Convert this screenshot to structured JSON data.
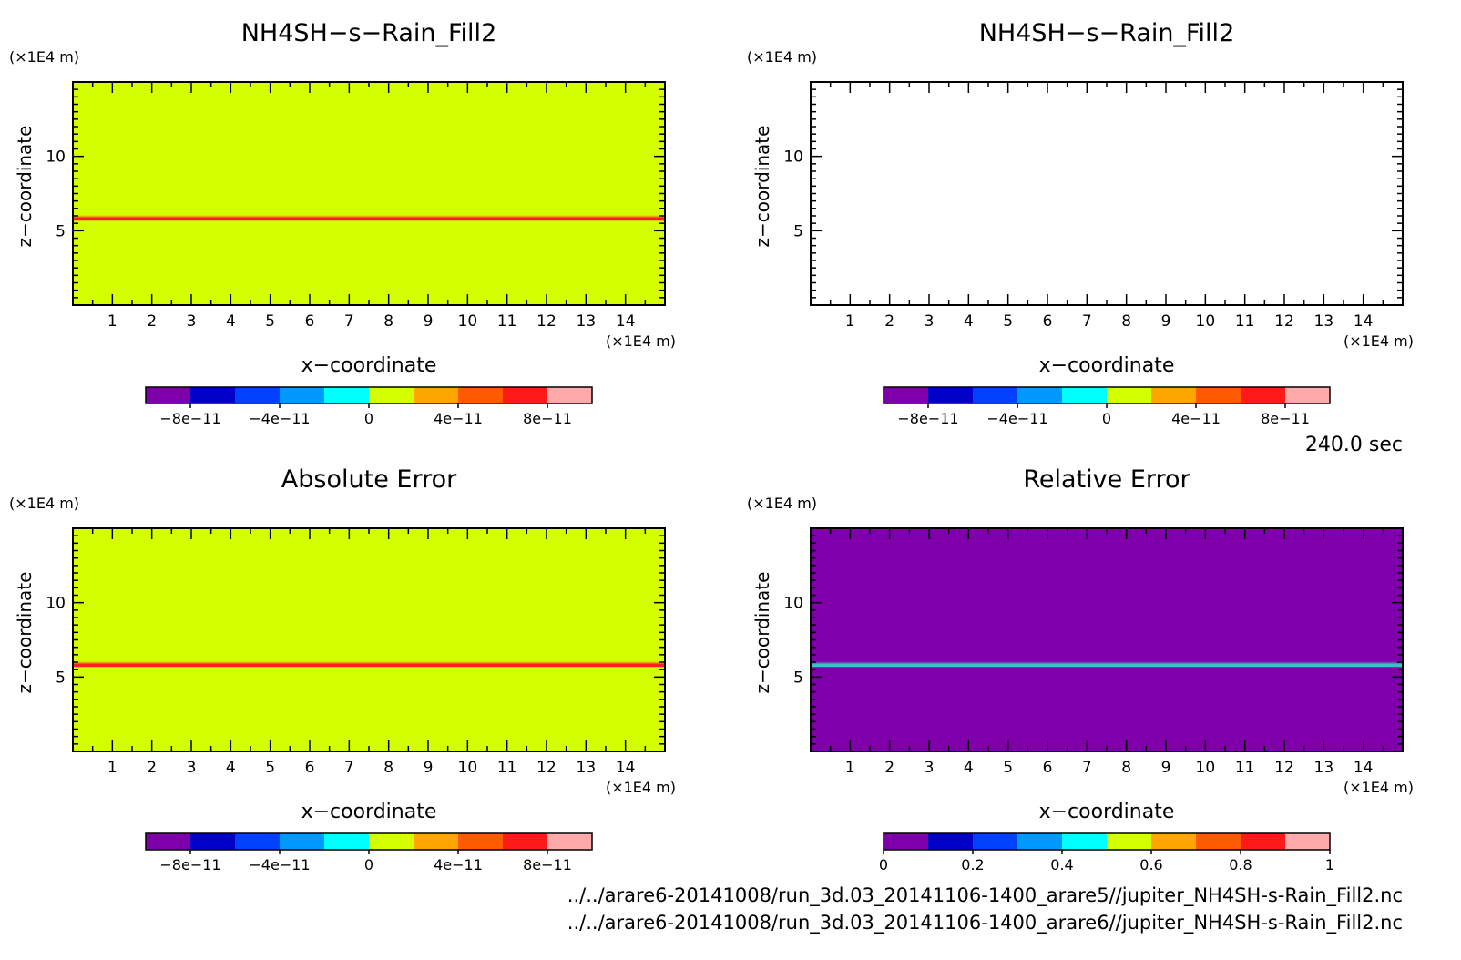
{
  "time_label": "240.0 sec",
  "footer": {
    "file1": "../../arare6-20141008/run_3d.03_20141106-1400_arare5//jupiter_NH4SH-s-Rain_Fill2.nc",
    "file2": "../../arare6-20141008/run_3d.03_20141106-1400_arare6//jupiter_NH4SH-s-Rain_Fill2.nc"
  },
  "colors": {
    "palette": [
      "#7f00aa",
      "#0000c8",
      "#0040ff",
      "#0099ff",
      "#00ffff",
      "#d4ff00",
      "#ffa600",
      "#ff5a00",
      "#ff1a1a",
      "#ffaaaa"
    ],
    "red_line": "#ff2020",
    "cyan_line": "#40c0c0"
  },
  "chart_data": [
    {
      "type": "heatmap",
      "title": "NH4SH−s−Rain_Fill2",
      "xlabel": "x−coordinate",
      "ylabel": "z−coordinate",
      "xunit": "(×1E4 m)",
      "yunit": "(×1E4 m)",
      "xlim": [
        0,
        15
      ],
      "ylim": [
        0,
        15
      ],
      "xticks": [
        "1",
        "2",
        "3",
        "4",
        "5",
        "6",
        "7",
        "8",
        "9",
        "10",
        "11",
        "12",
        "13",
        "14"
      ],
      "yticks": [
        "5",
        "10"
      ],
      "background_color": "#d4ff00",
      "line_features": [
        {
          "z": 5.8,
          "color": "#ff2020"
        }
      ],
      "colorbar": {
        "levels": 10,
        "range": [
          -1e-10,
          1e-10
        ],
        "tick_labels": [
          "−8e−11",
          "−4e−11",
          "0",
          "4e−11",
          "8e−11"
        ],
        "tick_values": [
          -8e-11,
          -4e-11,
          0,
          4e-11,
          8e-11
        ]
      }
    },
    {
      "type": "heatmap",
      "title": "NH4SH−s−Rain_Fill2",
      "xlabel": "x−coordinate",
      "ylabel": "z−coordinate",
      "xunit": "(×1E4 m)",
      "yunit": "(×1E4 m)",
      "xlim": [
        0,
        15
      ],
      "ylim": [
        0,
        15
      ],
      "xticks": [
        "1",
        "2",
        "3",
        "4",
        "5",
        "6",
        "7",
        "8",
        "9",
        "10",
        "11",
        "12",
        "13",
        "14"
      ],
      "yticks": [
        "5",
        "10"
      ],
      "background_color": "#ffffff",
      "line_features": [],
      "colorbar": {
        "levels": 10,
        "range": [
          -1e-10,
          1e-10
        ],
        "tick_labels": [
          "−8e−11",
          "−4e−11",
          "0",
          "4e−11",
          "8e−11"
        ],
        "tick_values": [
          -8e-11,
          -4e-11,
          0,
          4e-11,
          8e-11
        ]
      }
    },
    {
      "type": "heatmap",
      "title": "Absolute Error",
      "xlabel": "x−coordinate",
      "ylabel": "z−coordinate",
      "xunit": "(×1E4 m)",
      "yunit": "(×1E4 m)",
      "xlim": [
        0,
        15
      ],
      "ylim": [
        0,
        15
      ],
      "xticks": [
        "1",
        "2",
        "3",
        "4",
        "5",
        "6",
        "7",
        "8",
        "9",
        "10",
        "11",
        "12",
        "13",
        "14"
      ],
      "yticks": [
        "5",
        "10"
      ],
      "background_color": "#d4ff00",
      "line_features": [
        {
          "z": 5.8,
          "color": "#ff2020"
        }
      ],
      "colorbar": {
        "levels": 10,
        "range": [
          -1e-10,
          1e-10
        ],
        "tick_labels": [
          "−8e−11",
          "−4e−11",
          "0",
          "4e−11",
          "8e−11"
        ],
        "tick_values": [
          -8e-11,
          -4e-11,
          0,
          4e-11,
          8e-11
        ]
      }
    },
    {
      "type": "heatmap",
      "title": "Relative Error",
      "xlabel": "x−coordinate",
      "ylabel": "z−coordinate",
      "xunit": "(×1E4 m)",
      "yunit": "(×1E4 m)",
      "xlim": [
        0,
        15
      ],
      "ylim": [
        0,
        15
      ],
      "xticks": [
        "1",
        "2",
        "3",
        "4",
        "5",
        "6",
        "7",
        "8",
        "9",
        "10",
        "11",
        "12",
        "13",
        "14"
      ],
      "yticks": [
        "5",
        "10"
      ],
      "background_color": "#7f00aa",
      "line_features": [
        {
          "z": 5.8,
          "color": "#40c0c0"
        }
      ],
      "colorbar": {
        "levels": 10,
        "range": [
          0,
          1
        ],
        "tick_labels": [
          "0",
          "0.2",
          "0.4",
          "0.6",
          "0.8",
          "1"
        ],
        "tick_values": [
          0,
          0.2,
          0.4,
          0.6,
          0.8,
          1
        ]
      }
    }
  ]
}
